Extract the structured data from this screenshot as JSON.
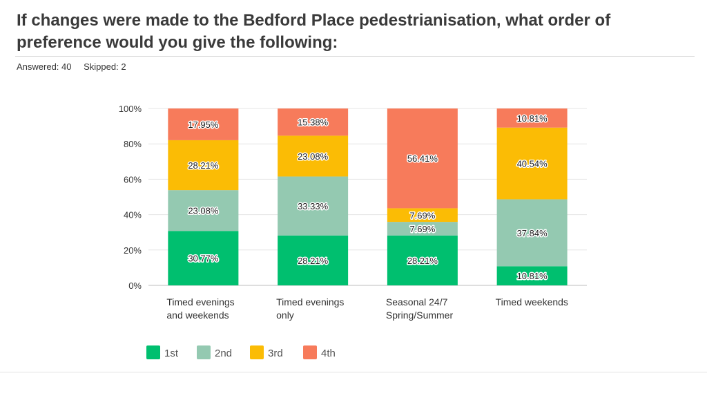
{
  "header": {
    "title": "If changes were made to the Bedford Place pedestrianisation, what order of preference would you give the following:",
    "answered": "Answered: 40",
    "skipped": "Skipped: 2"
  },
  "colors": {
    "1st": "#00bf6f",
    "2nd": "#94c9b1",
    "3rd": "#fbbc05",
    "4th": "#f77b5b",
    "grid": "#e4e4e4",
    "axis": "#bdbdbd",
    "text": "#333333"
  },
  "chart_data": {
    "type": "bar",
    "stacked": true,
    "ylim": [
      0,
      100
    ],
    "yticks": [
      "0%",
      "20%",
      "40%",
      "60%",
      "80%",
      "100%"
    ],
    "ytick_values": [
      0,
      20,
      40,
      60,
      80,
      100
    ],
    "categories": [
      [
        "Timed evenings",
        "and weekends"
      ],
      [
        "Timed evenings",
        "only"
      ],
      [
        "Seasonal 24/7",
        "Spring/Summer"
      ],
      [
        "Timed weekends"
      ]
    ],
    "series": [
      {
        "name": "1st",
        "values": [
          30.77,
          28.21,
          28.21,
          10.81
        ],
        "labels": [
          "30.77%",
          "28.21%",
          "28.21%",
          "10.81%"
        ]
      },
      {
        "name": "2nd",
        "values": [
          23.08,
          33.33,
          7.69,
          37.84
        ],
        "labels": [
          "23.08%",
          "33.33%",
          "7.69%",
          "37.84%"
        ]
      },
      {
        "name": "3rd",
        "values": [
          28.21,
          23.08,
          7.69,
          40.54
        ],
        "labels": [
          "28.21%",
          "23.08%",
          "7.69%",
          "40.54%"
        ]
      },
      {
        "name": "4th",
        "values": [
          17.95,
          15.38,
          56.41,
          10.81
        ],
        "labels": [
          "17.95%",
          "15.38%",
          "56.41%",
          "10.81%"
        ]
      }
    ],
    "legend": [
      "1st",
      "2nd",
      "3rd",
      "4th"
    ],
    "legend_position": "bottom"
  }
}
